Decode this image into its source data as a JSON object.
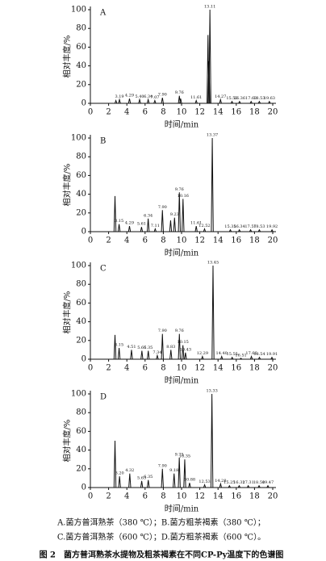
{
  "chart_data": [
    {
      "type": "line",
      "panel": "A",
      "xlabel": "时间/min",
      "ylabel": "相对丰度/%",
      "xlim": [
        0,
        20
      ],
      "ylim": [
        0,
        100
      ],
      "xticks": [
        0,
        2,
        4,
        6,
        8,
        10,
        12,
        14,
        16,
        18,
        20
      ],
      "yticks": [
        0,
        20,
        40,
        60,
        80,
        100
      ],
      "color": "#111111",
      "x": [
        2.8,
        3.19,
        4.29,
        5.4,
        6.34,
        7.07,
        7.9,
        9.76,
        9.9,
        11.61,
        12.9,
        13.0,
        13.11,
        14.27,
        15.53,
        16.36,
        17.63,
        18.53,
        19.63
      ],
      "values": [
        3,
        4,
        5,
        4,
        4,
        3,
        6,
        8,
        5,
        3,
        73,
        45,
        100,
        4,
        2,
        2,
        2,
        2,
        2
      ],
      "annotations": [
        {
          "text": "3.19",
          "x": 3.19,
          "y": 4
        },
        {
          "text": "4.29",
          "x": 4.29,
          "y": 5
        },
        {
          "text": "5.40",
          "x": 5.4,
          "y": 4
        },
        {
          "text": "6.34",
          "x": 6.34,
          "y": 4
        },
        {
          "text": "7.07",
          "x": 7.07,
          "y": 3
        },
        {
          "text": "7.90",
          "x": 7.9,
          "y": 6
        },
        {
          "text": "9.76",
          "x": 9.76,
          "y": 8
        },
        {
          "text": "11.61",
          "x": 11.61,
          "y": 3
        },
        {
          "text": "13.11",
          "x": 13.11,
          "y": 100
        },
        {
          "text": "14.27",
          "x": 14.27,
          "y": 4
        },
        {
          "text": "15.53",
          "x": 15.53,
          "y": 2
        },
        {
          "text": "16.36",
          "x": 16.36,
          "y": 2
        },
        {
          "text": "17.63",
          "x": 17.63,
          "y": 2
        },
        {
          "text": "18.53",
          "x": 18.53,
          "y": 2
        },
        {
          "text": "19.63",
          "x": 19.63,
          "y": 2
        }
      ]
    },
    {
      "type": "line",
      "panel": "B",
      "xlabel": "时间/min",
      "ylabel": "相对丰度/%",
      "xlim": [
        0,
        20
      ],
      "ylim": [
        0,
        100
      ],
      "xticks": [
        0,
        2,
        4,
        6,
        8,
        10,
        12,
        14,
        16,
        18,
        20
      ],
      "yticks": [
        0,
        20,
        40,
        60,
        80,
        100
      ],
      "color": "#111111",
      "x": [
        2.7,
        3.15,
        4.29,
        5.61,
        6.34,
        7.11,
        7.9,
        8.8,
        9.23,
        9.76,
        10.16,
        11.61,
        12.52,
        13.37,
        15.35,
        16.34,
        17.57,
        18.53,
        19.92
      ],
      "values": [
        38,
        8,
        6,
        5,
        14,
        3,
        23,
        12,
        15,
        42,
        35,
        6,
        3,
        100,
        2,
        2,
        2,
        2,
        2
      ],
      "annotations": [
        {
          "text": "3.15",
          "x": 3.15,
          "y": 8
        },
        {
          "text": "4.29",
          "x": 4.29,
          "y": 6
        },
        {
          "text": "5.61",
          "x": 5.61,
          "y": 5
        },
        {
          "text": "6.34",
          "x": 6.34,
          "y": 14
        },
        {
          "text": "7.11",
          "x": 7.11,
          "y": 3
        },
        {
          "text": "7.90",
          "x": 7.9,
          "y": 23
        },
        {
          "text": "9.23",
          "x": 9.23,
          "y": 15
        },
        {
          "text": "9.76",
          "x": 9.76,
          "y": 42
        },
        {
          "text": "10.16",
          "x": 10.16,
          "y": 35
        },
        {
          "text": "11.61",
          "x": 11.61,
          "y": 6
        },
        {
          "text": "12.52",
          "x": 12.52,
          "y": 3
        },
        {
          "text": "13.37",
          "x": 13.37,
          "y": 100
        },
        {
          "text": "15.35",
          "x": 15.35,
          "y": 2
        },
        {
          "text": "16.34",
          "x": 16.34,
          "y": 2
        },
        {
          "text": "17.57",
          "x": 17.57,
          "y": 2
        },
        {
          "text": "18.53",
          "x": 18.53,
          "y": 2
        },
        {
          "text": "19.92",
          "x": 19.92,
          "y": 2
        }
      ]
    },
    {
      "type": "line",
      "panel": "C",
      "xlabel": "时间/min",
      "ylabel": "相对丰度/%",
      "xlim": [
        0,
        20
      ],
      "ylim": [
        0,
        100
      ],
      "xticks": [
        0,
        2,
        4,
        6,
        8,
        10,
        12,
        14,
        16,
        18,
        20
      ],
      "yticks": [
        0,
        20,
        40,
        60,
        80,
        100
      ],
      "color": "#111111",
      "x": [
        2.7,
        3.15,
        4.51,
        5.65,
        6.35,
        7.34,
        7.9,
        8.83,
        9.76,
        10.15,
        10.43,
        12.29,
        13.45,
        14.4,
        15.55,
        16.51,
        17.66,
        18.54,
        19.91
      ],
      "values": [
        26,
        12,
        10,
        9,
        9,
        4,
        27,
        10,
        27,
        15,
        7,
        3,
        100,
        3,
        2,
        1,
        3,
        2,
        2
      ],
      "annotations": [
        {
          "text": "3.15",
          "x": 3.15,
          "y": 12
        },
        {
          "text": "4.51",
          "x": 4.51,
          "y": 10
        },
        {
          "text": "5.65",
          "x": 5.65,
          "y": 9
        },
        {
          "text": "6.35",
          "x": 6.35,
          "y": 9
        },
        {
          "text": "7.34",
          "x": 7.34,
          "y": 4
        },
        {
          "text": "7.90",
          "x": 7.9,
          "y": 27
        },
        {
          "text": "8.83",
          "x": 8.83,
          "y": 10
        },
        {
          "text": "9.76",
          "x": 9.76,
          "y": 27
        },
        {
          "text": "10.15",
          "x": 10.15,
          "y": 15
        },
        {
          "text": "10.43",
          "x": 10.43,
          "y": 7
        },
        {
          "text": "12.29",
          "x": 12.29,
          "y": 3
        },
        {
          "text": "13.45",
          "x": 13.45,
          "y": 100
        },
        {
          "text": "14.40",
          "x": 14.4,
          "y": 3
        },
        {
          "text": "15.55",
          "x": 15.55,
          "y": 2
        },
        {
          "text": "16.51",
          "x": 16.51,
          "y": 1
        },
        {
          "text": "17.66",
          "x": 17.66,
          "y": 3
        },
        {
          "text": "18.54",
          "x": 18.54,
          "y": 2
        },
        {
          "text": "19.91",
          "x": 19.91,
          "y": 2
        }
      ]
    },
    {
      "type": "line",
      "panel": "D",
      "xlabel": "时间/min",
      "ylabel": "相对丰度/%",
      "xlim": [
        0,
        20
      ],
      "ylim": [
        0,
        100
      ],
      "xticks": [
        0,
        2,
        4,
        6,
        8,
        10,
        12,
        14,
        16,
        18,
        20
      ],
      "yticks": [
        0,
        20,
        40,
        60,
        80,
        100
      ],
      "color": "#111111",
      "x": [
        2.7,
        3.2,
        4.32,
        5.63,
        6.35,
        7.9,
        9.18,
        9.75,
        10.35,
        10.88,
        12.53,
        13.33,
        14.28,
        15.25,
        16.32,
        17.31,
        18.5,
        19.47
      ],
      "values": [
        50,
        12,
        15,
        7,
        8,
        20,
        15,
        32,
        30,
        5,
        3,
        100,
        4,
        2,
        2,
        2,
        2,
        2
      ],
      "annotations": [
        {
          "text": "3.20",
          "x": 3.2,
          "y": 12
        },
        {
          "text": "4.32",
          "x": 4.32,
          "y": 15
        },
        {
          "text": "5.63",
          "x": 5.63,
          "y": 7
        },
        {
          "text": "6.35",
          "x": 6.35,
          "y": 8
        },
        {
          "text": "7.90",
          "x": 7.9,
          "y": 20
        },
        {
          "text": "9.18",
          "x": 9.18,
          "y": 15
        },
        {
          "text": "9.75",
          "x": 9.75,
          "y": 32
        },
        {
          "text": "10.35",
          "x": 10.35,
          "y": 30
        },
        {
          "text": "10.88",
          "x": 10.88,
          "y": 5
        },
        {
          "text": "12.53",
          "x": 12.53,
          "y": 3
        },
        {
          "text": "13.33",
          "x": 13.33,
          "y": 100
        },
        {
          "text": "14.28",
          "x": 14.28,
          "y": 4
        },
        {
          "text": "15.25",
          "x": 15.25,
          "y": 2
        },
        {
          "text": "16.32",
          "x": 16.32,
          "y": 2
        },
        {
          "text": "17.31",
          "x": 17.31,
          "y": 2
        },
        {
          "text": "18.50",
          "x": 18.5,
          "y": 2
        },
        {
          "text": "19.47",
          "x": 19.47,
          "y": 2
        }
      ]
    }
  ],
  "caption": {
    "lines": [
      "A.菌方普洱熟茶（380 ℃）；B.菌方粗茶褐素（380 ℃）；",
      "C.菌方普洱熟茶（600 ℃）；D.菌方粗茶褐素（600 ℃）。"
    ],
    "title": "图 2　菌方普洱熟茶水提物及粗茶褐素在不同CP-Py温度下的色谱图"
  }
}
